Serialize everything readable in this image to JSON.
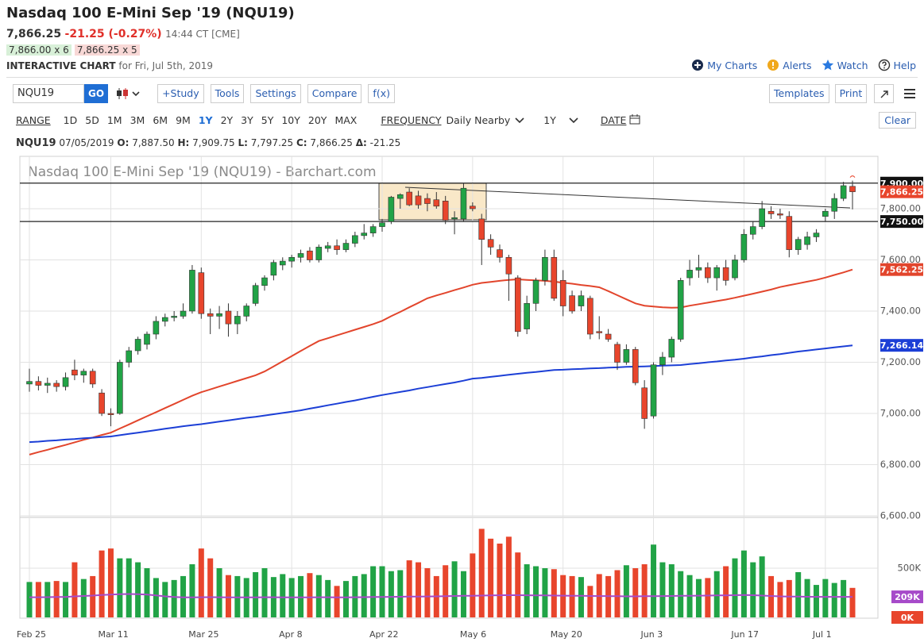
{
  "header": {
    "title": "Nasdaq 100 E-Mini Sep '19 (NQU19)",
    "last": "7,866.25",
    "change": "-21.25 (-0.27%)",
    "time": "14:44 CT [CME]",
    "bid": "7,866.00 x 6",
    "ask": "7,866.25 x 5",
    "chart_label": "INTERACTIVE CHART",
    "chart_date": "for Fri, Jul 5th, 2019"
  },
  "links": [
    "My Charts",
    "Alerts",
    "Watch",
    "Help"
  ],
  "toolbar": {
    "symbol": "NQU19",
    "go": "GO",
    "buttons": [
      "+Study",
      "Tools",
      "Settings",
      "Compare",
      "f(x)"
    ],
    "right_buttons": [
      "Templates",
      "Print"
    ]
  },
  "range_bar": {
    "range_label": "RANGE",
    "ranges": [
      "1D",
      "5D",
      "1M",
      "3M",
      "6M",
      "9M",
      "1Y",
      "2Y",
      "3Y",
      "5Y",
      "10Y",
      "20Y",
      "MAX"
    ],
    "active": "1Y",
    "frequency_label": "FREQUENCY",
    "frequency": "Daily Nearby",
    "period": "1Y",
    "date_label": "DATE",
    "clear": "Clear"
  },
  "info": {
    "symbol": "NQU19",
    "date": "07/05/2019",
    "items": [
      {
        "key": "O:",
        "value": "7,887.50"
      },
      {
        "key": "H:",
        "value": "7,909.75"
      },
      {
        "key": "L:",
        "value": "7,797.25"
      },
      {
        "key": "C:",
        "value": "7,866.25"
      },
      {
        "key": "Δ:",
        "value": "-21.25"
      }
    ]
  },
  "chart_data": {
    "type": "candlestick",
    "watermark": "Nasdaq 100 E-Mini Sep '19 (NQU19) - Barchart.com",
    "categories": [
      "Feb 25",
      null,
      null,
      null,
      null,
      null,
      null,
      null,
      null,
      "Mar 11",
      null,
      null,
      null,
      null,
      null,
      null,
      null,
      null,
      null,
      "Mar 25",
      null,
      null,
      null,
      null,
      null,
      null,
      null,
      null,
      null,
      "Apr 8",
      null,
      null,
      null,
      null,
      null,
      null,
      null,
      null,
      null,
      "Apr 22",
      null,
      null,
      null,
      null,
      null,
      null,
      null,
      null,
      null,
      "May 6",
      null,
      null,
      null,
      null,
      null,
      null,
      null,
      null,
      null,
      "May 20",
      null,
      null,
      null,
      null,
      null,
      null,
      null,
      null,
      null,
      "Jun 3",
      null,
      null,
      null,
      null,
      null,
      null,
      null,
      null,
      null,
      "Jun 17",
      null,
      null,
      null,
      null,
      null,
      null,
      null,
      null,
      "Jul 1",
      null,
      null,
      null
    ],
    "open": [
      7115,
      7125,
      7110,
      7118,
      7105,
      7170,
      7150,
      7165,
      7080,
      7000,
      7000,
      7200,
      7245,
      7270,
      7310,
      7360,
      7375,
      7380,
      7400,
      7550,
      7390,
      7380,
      7400,
      7350,
      7380,
      7430,
      7500,
      7540,
      7580,
      7595,
      7610,
      7635,
      7600,
      7645,
      7655,
      7640,
      7665,
      7695,
      7705,
      7730,
      7750,
      7840,
      7865,
      7850,
      7840,
      7835,
      7830,
      7760,
      7760,
      7810,
      7760,
      7680,
      7640,
      7610,
      7530,
      7330,
      7430,
      7520,
      7610,
      7520,
      7460,
      7420,
      7450,
      7320,
      7310,
      7270,
      7200,
      7250,
      7100,
      6990,
      7190,
      7220,
      7290,
      7530,
      7560,
      7570,
      7530,
      7570,
      7530,
      7600,
      7700,
      7730,
      7790,
      7780,
      7770,
      7640,
      7660,
      7690,
      7770,
      7790,
      7840,
      7887.5
    ],
    "high": [
      7175,
      7145,
      7140,
      7130,
      7160,
      7210,
      7175,
      7175,
      7095,
      7020,
      7210,
      7260,
      7300,
      7320,
      7380,
      7390,
      7400,
      7430,
      7580,
      7570,
      7410,
      7420,
      7430,
      7400,
      7430,
      7510,
      7540,
      7600,
      7610,
      7620,
      7640,
      7650,
      7660,
      7670,
      7680,
      7680,
      7710,
      7740,
      7740,
      7760,
      7850,
      7860,
      7880,
      7870,
      7860,
      7865,
      7850,
      7790,
      7900,
      7825,
      7780,
      7700,
      7660,
      7620,
      7540,
      7460,
      7530,
      7640,
      7640,
      7560,
      7480,
      7480,
      7460,
      7380,
      7330,
      7280,
      7270,
      7260,
      7130,
      7200,
      7240,
      7300,
      7530,
      7600,
      7620,
      7590,
      7580,
      7600,
      7620,
      7720,
      7750,
      7830,
      7810,
      7800,
      7790,
      7690,
      7710,
      7720,
      7800,
      7860,
      7905,
      7909.75
    ],
    "low": [
      7085,
      7090,
      7080,
      7085,
      7090,
      7130,
      7120,
      7100,
      6990,
      6950,
      6995,
      7180,
      7230,
      7250,
      7290,
      7340,
      7360,
      7370,
      7390,
      7370,
      7310,
      7330,
      7300,
      7310,
      7360,
      7420,
      7480,
      7520,
      7560,
      7570,
      7590,
      7590,
      7590,
      7630,
      7620,
      7630,
      7650,
      7680,
      7690,
      7710,
      7740,
      7800,
      7810,
      7800,
      7790,
      7800,
      7740,
      7700,
      7750,
      7790,
      7580,
      7620,
      7590,
      7440,
      7300,
      7310,
      7400,
      7500,
      7440,
      7380,
      7390,
      7400,
      7290,
      7290,
      7280,
      7170,
      7190,
      7110,
      6940,
      6980,
      7150,
      7200,
      7280,
      7500,
      7530,
      7510,
      7480,
      7500,
      7520,
      7590,
      7680,
      7720,
      7760,
      7760,
      7610,
      7620,
      7640,
      7670,
      7750,
      7760,
      7830,
      7797.25
    ],
    "close": [
      7125,
      7110,
      7118,
      7105,
      7140,
      7150,
      7165,
      7115,
      7000,
      6995,
      7200,
      7245,
      7290,
      7310,
      7360,
      7375,
      7380,
      7400,
      7560,
      7390,
      7380,
      7390,
      7350,
      7380,
      7420,
      7500,
      7530,
      7590,
      7595,
      7610,
      7625,
      7600,
      7650,
      7655,
      7640,
      7665,
      7695,
      7705,
      7730,
      7745,
      7845,
      7855,
      7815,
      7815,
      7820,
      7810,
      7755,
      7765,
      7880,
      7800,
      7680,
      7650,
      7610,
      7545,
      7320,
      7430,
      7520,
      7610,
      7450,
      7420,
      7400,
      7460,
      7310,
      7315,
      7290,
      7200,
      7250,
      7120,
      6980,
      7190,
      7220,
      7290,
      7520,
      7560,
      7570,
      7530,
      7570,
      7520,
      7600,
      7700,
      7730,
      7800,
      7780,
      7775,
      7640,
      7680,
      7690,
      7705,
      7790,
      7840,
      7890,
      7866.25
    ],
    "up_color": "#21a346",
    "down_color": "#e8452c",
    "ylim": [
      6600,
      8000
    ],
    "yticks": [
      {
        "value": 6600,
        "label": "6,600.00"
      },
      {
        "value": 6800,
        "label": "6,800.00"
      },
      {
        "value": 7000,
        "label": "7,000.00"
      },
      {
        "value": 7200,
        "label": "7,200.00"
      },
      {
        "value": 7400,
        "label": "7,400.00"
      },
      {
        "value": 7600,
        "label": "7,600.00"
      },
      {
        "value": 7800,
        "label": "7,800.00"
      }
    ],
    "grid": true,
    "levels": [
      {
        "value": 7900,
        "label": "7,900.00"
      },
      {
        "value": 7750,
        "label": "7,750.00"
      }
    ],
    "last": {
      "value": 7866.25,
      "label": "7,866.25"
    },
    "series": [
      {
        "color": "#e2452c",
        "last_label": "7,562.25",
        "values": [
          6839,
          6849,
          6858,
          6868,
          6877,
          6887,
          6897,
          6906,
          6916,
          6925,
          6941,
          6957,
          6973,
          6989,
          7005,
          7021,
          7037,
          7053,
          7069,
          7083,
          7094,
          7105,
          7116,
          7127,
          7138,
          7149,
          7164,
          7184,
          7204,
          7224,
          7244,
          7264,
          7283,
          7294,
          7305,
          7316,
          7327,
          7338,
          7349,
          7362,
          7380,
          7397,
          7415,
          7432,
          7450,
          7461,
          7471,
          7482,
          7492,
          7503,
          7510,
          7514,
          7518,
          7522,
          7524,
          7522,
          7520,
          7518,
          7515,
          7511,
          7507,
          7502,
          7498,
          7493,
          7478,
          7462,
          7446,
          7430,
          7421,
          7418,
          7415,
          7413,
          7414,
          7421,
          7427,
          7433,
          7439,
          7445,
          7452,
          7460,
          7468,
          7476,
          7484,
          7494,
          7501,
          7508,
          7515,
          7522,
          7531,
          7541,
          7551,
          7562.25
        ]
      },
      {
        "color": "#1c3fd6",
        "last_label": "7,266.14",
        "values": [
          6888,
          6890,
          6893,
          6895,
          6898,
          6900,
          6903,
          6905,
          6908,
          6910,
          6915,
          6920,
          6925,
          6930,
          6935,
          6940,
          6945,
          6950,
          6954,
          6958,
          6963,
          6968,
          6973,
          6978,
          6983,
          6987,
          6992,
          6997,
          7002,
          7007,
          7012,
          7019,
          7025,
          7032,
          7038,
          7045,
          7051,
          7058,
          7065,
          7072,
          7078,
          7084,
          7090,
          7097,
          7103,
          7109,
          7115,
          7121,
          7128,
          7136,
          7139,
          7143,
          7147,
          7151,
          7155,
          7159,
          7162,
          7166,
          7170,
          7171,
          7173,
          7174,
          7176,
          7177,
          7179,
          7180,
          7182,
          7183,
          7184,
          7185,
          7187,
          7188,
          7189,
          7193,
          7196,
          7200,
          7203,
          7207,
          7210,
          7214,
          7219,
          7223,
          7228,
          7232,
          7237,
          7242,
          7246,
          7250,
          7254,
          7258,
          7262,
          7266.14
        ]
      }
    ],
    "volume": {
      "ylim": [
        0,
        1000000
      ],
      "yticks": [
        {
          "value": 500000,
          "label": "500K"
        }
      ],
      "zero": {
        "value": 0,
        "label": "0K"
      },
      "values": [
        360000,
        360000,
        360000,
        370000,
        360000,
        560000,
        390000,
        420000,
        680000,
        700000,
        600000,
        600000,
        560000,
        500000,
        400000,
        360000,
        380000,
        420000,
        540000,
        700000,
        600000,
        500000,
        430000,
        420000,
        400000,
        460000,
        500000,
        410000,
        440000,
        400000,
        420000,
        450000,
        430000,
        380000,
        320000,
        370000,
        420000,
        440000,
        520000,
        520000,
        470000,
        480000,
        580000,
        560000,
        500000,
        420000,
        530000,
        570000,
        470000,
        650000,
        900000,
        800000,
        750000,
        820000,
        660000,
        540000,
        520000,
        500000,
        490000,
        430000,
        420000,
        410000,
        320000,
        440000,
        420000,
        480000,
        530000,
        500000,
        540000,
        740000,
        560000,
        540000,
        470000,
        430000,
        390000,
        400000,
        470000,
        520000,
        600000,
        680000,
        560000,
        620000,
        420000,
        360000,
        380000,
        460000,
        390000,
        330000,
        390000,
        350000,
        380000,
        300000
      ],
      "average": {
        "color": "#a64ac9",
        "last_label": "209K",
        "values": [
          205000,
          205000,
          206000,
          207000,
          208000,
          214000,
          218000,
          222000,
          228000,
          232000,
          236000,
          238000,
          236000,
          232000,
          224000,
          214000,
          208000,
          204000,
          203000,
          205000,
          206000,
          205000,
          204000,
          203000,
          203000,
          204000,
          205000,
          205000,
          204000,
          203000,
          203000,
          204000,
          205000,
          205000,
          204000,
          204000,
          205000,
          206000,
          207000,
          208000,
          209000,
          210000,
          211000,
          212000,
          213000,
          214000,
          216000,
          218000,
          219000,
          220000,
          222000,
          224000,
          225000,
          226000,
          226000,
          225000,
          224000,
          223000,
          222000,
          221000,
          220000,
          219000,
          218000,
          217000,
          216000,
          215000,
          214000,
          214000,
          215000,
          216000,
          217000,
          218000,
          219000,
          220000,
          221000,
          222000,
          223000,
          224000,
          226000,
          228000,
          226000,
          222000,
          218000,
          214000,
          212000,
          211000,
          210000,
          209000,
          209000,
          209000,
          209000,
          209000
        ]
      }
    }
  }
}
